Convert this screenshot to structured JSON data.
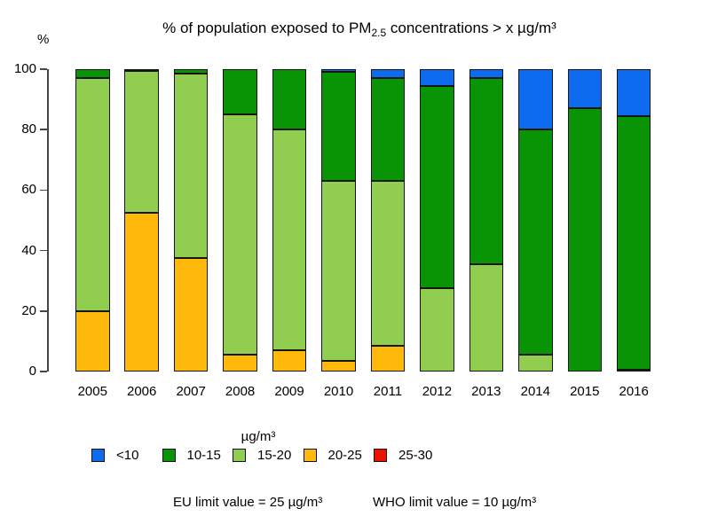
{
  "title": {
    "prefix": "% of population exposed to PM",
    "subscript": "2.5",
    "suffix": " concentrations > x µg/m³"
  },
  "y_axis_label": "%",
  "chart_data": {
    "type": "bar",
    "variant": "stacked-vertical",
    "categories": [
      "2005",
      "2006",
      "2007",
      "2008",
      "2009",
      "2010",
      "2011",
      "2012",
      "2013",
      "2014",
      "2015",
      "2016"
    ],
    "series": [
      {
        "name": "25-30",
        "color_key": "red",
        "values": [
          0,
          0,
          0,
          0,
          0,
          0,
          0,
          0,
          0,
          0,
          0,
          0
        ]
      },
      {
        "name": "20-25",
        "color_key": "orange",
        "values": [
          20,
          52.5,
          37.5,
          5.5,
          7,
          3.5,
          8.5,
          0,
          0,
          0,
          0,
          0
        ]
      },
      {
        "name": "15-20",
        "color_key": "lightgreen",
        "values": [
          77,
          47,
          61,
          79.5,
          73,
          59.5,
          54.5,
          27.5,
          35.5,
          5.5,
          0,
          0.5
        ]
      },
      {
        "name": "10-15",
        "color_key": "darkgreen",
        "values": [
          3,
          0.5,
          1.5,
          15,
          20,
          36,
          34,
          67,
          61.5,
          74.5,
          87,
          84
        ]
      },
      {
        "name": "<10",
        "color_key": "blue",
        "values": [
          0,
          0,
          0,
          0,
          0,
          1,
          3,
          5.5,
          3,
          20,
          13,
          15.5
        ]
      }
    ],
    "stack_order_note": "series listed bottom-to-top as stacked",
    "ylim": [
      0,
      100
    ],
    "yticks": [
      0,
      20,
      40,
      60,
      80,
      100
    ],
    "grid": false,
    "legend_position": "bottom"
  },
  "legend": {
    "title": "µg/m³",
    "items": [
      {
        "label": "<10",
        "color_key": "blue"
      },
      {
        "label": "10-15",
        "color_key": "darkgreen"
      },
      {
        "label": "15-20",
        "color_key": "lightgreen"
      },
      {
        "label": "20-25",
        "color_key": "orange"
      },
      {
        "label": "25-30",
        "color_key": "red"
      }
    ]
  },
  "notes": {
    "eu": "EU limit value = 25 µg/m³",
    "who": "WHO limit value = 10 µg/m³"
  },
  "colors": {
    "blue": "#0d6bf0",
    "darkgreen": "#089404",
    "lightgreen": "#91ce50",
    "orange": "#ffb90a",
    "red": "#ee1100",
    "axis": "#454545",
    "bar_border": "#161616"
  }
}
